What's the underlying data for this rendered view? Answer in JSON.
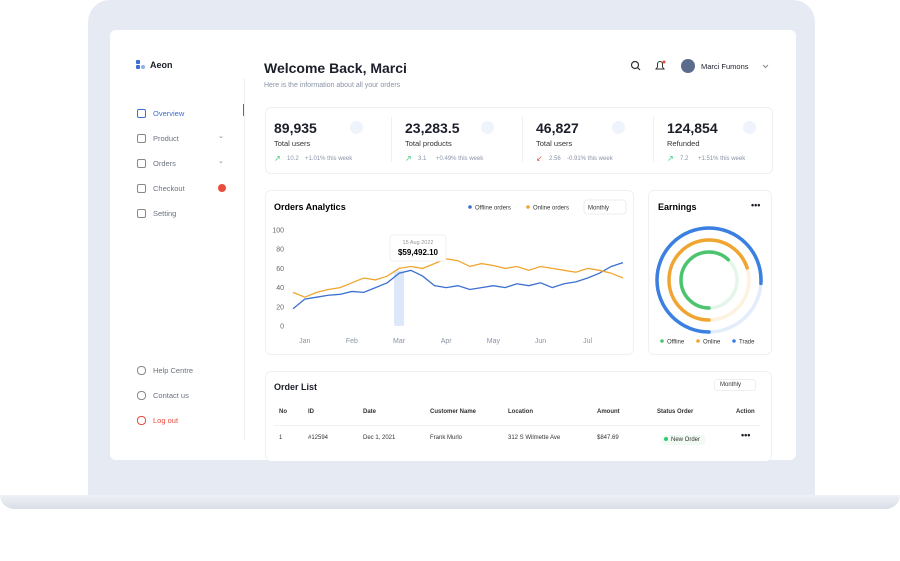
{
  "sidebar": {
    "brand": "Aeon",
    "menu": [
      "Overview",
      "Product",
      "Orders",
      "Checkout",
      "Setting"
    ],
    "footer_menu": [
      "Help Centre",
      "Contact us",
      "Log out"
    ]
  },
  "header": {
    "title": "Welcome Back, Marci",
    "subtitle": "Here is the information about all your orders",
    "user": "Marci Fumons"
  },
  "stats": [
    {
      "value": "89,935",
      "label": "Total users",
      "change": "10.2",
      "week": "+1.01% this week"
    },
    {
      "value": "23,283.5",
      "label": "Total products",
      "change": "3.1",
      "week": "+0.49% this week"
    },
    {
      "value": "46,827",
      "label": "Total users",
      "change": "2.56",
      "week": "-0.91% this week"
    },
    {
      "value": "124,854",
      "label": "Refunded",
      "change": "7.2",
      "week": "+1.51% this week"
    }
  ],
  "chart_data": [
    {
      "type": "line",
      "title": "Orders Analytics",
      "filter": "Monthly",
      "categories": [
        null,
        "Jan",
        null,
        null,
        null,
        "Feb",
        null,
        null,
        null,
        "Mar",
        null,
        null,
        null,
        "Apr",
        null,
        null,
        null,
        "May",
        null,
        null,
        null,
        "Jun",
        null,
        null,
        null,
        "Jul",
        null,
        null,
        null
      ],
      "series": [
        {
          "name": "Offline orders",
          "color": "#3b6fd0",
          "values": [
            18,
            28,
            30,
            32,
            33,
            36,
            35,
            40,
            45,
            55,
            58,
            52,
            42,
            40,
            42,
            38,
            40,
            42,
            40,
            44,
            42,
            45,
            40,
            44,
            46,
            50,
            55,
            62,
            66
          ]
        },
        {
          "name": "Online orders",
          "color": "#f0a530",
          "values": [
            35,
            30,
            35,
            38,
            40,
            45,
            50,
            48,
            52,
            60,
            62,
            60,
            65,
            70,
            68,
            62,
            65,
            63,
            60,
            62,
            58,
            62,
            60,
            58,
            56,
            60,
            58,
            55,
            50
          ]
        }
      ],
      "ylim": [
        0,
        100
      ],
      "yticks": [
        0,
        20,
        40,
        60,
        80,
        100
      ],
      "grid": false,
      "tooltip": {
        "date": "15 Aug 2022",
        "value": "$59,492.10"
      }
    },
    {
      "type": "donut",
      "title": "Earnings",
      "categories": [
        "Offline",
        "Online",
        "Trade"
      ],
      "values": [
        62,
        70,
        76
      ],
      "colors": [
        "#4cc36f",
        "#f0a530",
        "#3b7fe0"
      ]
    }
  ],
  "order_list": {
    "title": "Order List",
    "filter": "Monthly",
    "columns": [
      "No",
      "ID",
      "Date",
      "Customer Name",
      "Location",
      "Amount",
      "Status Order",
      "Action"
    ],
    "rows": [
      [
        "1",
        "#12594",
        "Dec 1, 2021",
        "Frank Murlo",
        "312 S Wilmette Ave",
        "$847.69",
        "New Order"
      ]
    ]
  }
}
